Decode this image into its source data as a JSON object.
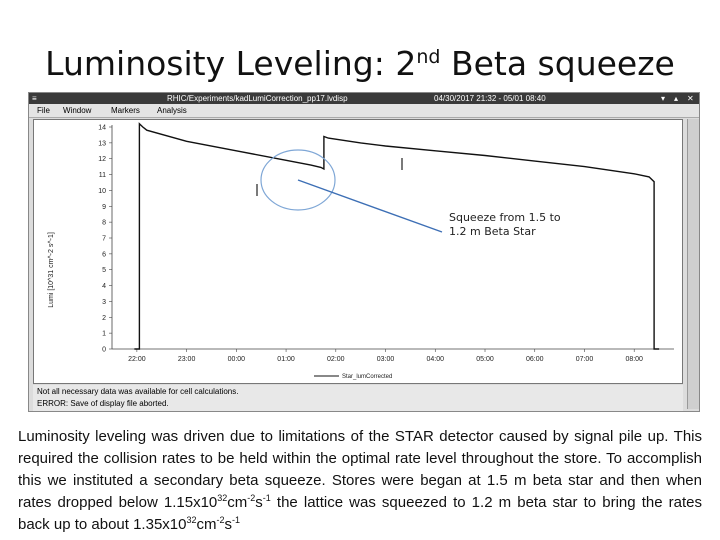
{
  "slide": {
    "title_main": "Luminosity Leveling: 2",
    "title_sup": "nd",
    "title_rest": " Beta squeeze"
  },
  "window": {
    "title": "RHIC/Experiments/kadLumiCorrection_pp17.lvdisp",
    "datetime": "04/30/2017 21:32 - 05/01 08:40",
    "menu": [
      "File",
      "Window",
      "Markers",
      "Analysis"
    ],
    "messages": [
      "Not all necessary data was available for cell calculations.",
      "ERROR: Save of display file aborted."
    ]
  },
  "annotation": {
    "line1": "Squeeze from 1.5 to",
    "line2": "1.2 m Beta Star"
  },
  "caption": {
    "p1": " Luminosity leveling was driven due to limitations of the STAR detector caused by signal pile up. This required the collision rates to be held within the optimal rate level throughout the store. To accomplish this we instituted a secondary beta squeeze. Stores were began at 1.5 m beta star and then when rates dropped below 1.15x10",
    "e1": "32",
    "p2": "cm",
    "e2": "-2",
    "p3": "s",
    "e3": "-1",
    "p4": " the lattice was squeezed to 1.2 m beta star to bring the rates back up to about 1.35x10",
    "e4": "32",
    "p5": "cm",
    "e5": "-2",
    "p6": "s",
    "e6": "-1"
  },
  "chart_data": {
    "type": "line",
    "ylabel": "Lumi [10^31 cm^-2 s^-1]",
    "xlabel": "",
    "ylim": [
      0,
      14
    ],
    "yticks": [
      "0",
      "1",
      "2",
      "3",
      "4",
      "5",
      "6",
      "7",
      "8",
      "9",
      "10",
      "11",
      "12",
      "13",
      "14"
    ],
    "xticks": [
      "22:00",
      "23:00",
      "00:00",
      "01:00",
      "02:00",
      "03:00",
      "04:00",
      "05:00",
      "06:00",
      "07:00",
      "08:00"
    ],
    "legend": "Star_lumCorrected",
    "series": [
      {
        "name": "Star_lumCorrected",
        "x": [
          21.95,
          22.05,
          22.05,
          22.12,
          22.2,
          23.0,
          24.0,
          25.0,
          25.5,
          25.7,
          25.76,
          25.76,
          25.85,
          26.5,
          27.0,
          28.0,
          29.0,
          30.0,
          31.0,
          32.0,
          32.3,
          32.4,
          32.4,
          32.5
        ],
        "y": [
          0,
          0,
          14.2,
          14.0,
          13.8,
          13.1,
          12.5,
          11.9,
          11.6,
          11.45,
          11.35,
          13.4,
          13.3,
          13.0,
          12.8,
          12.5,
          12.2,
          11.85,
          11.5,
          11.05,
          10.85,
          10.55,
          0,
          0
        ]
      }
    ]
  }
}
